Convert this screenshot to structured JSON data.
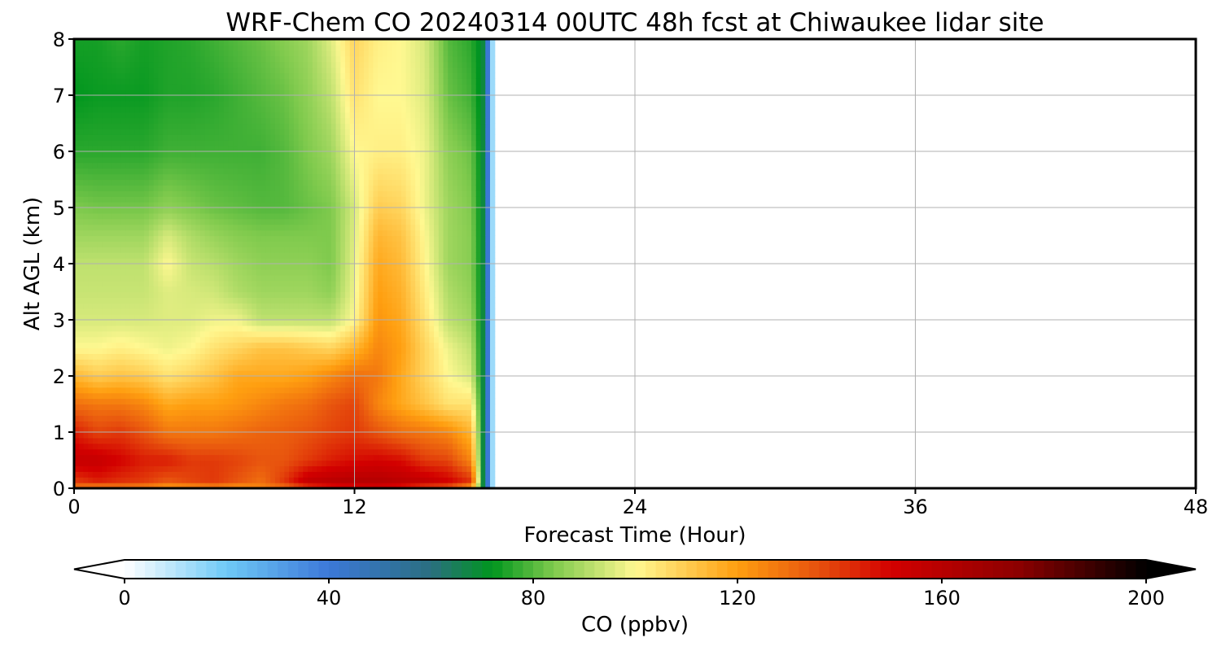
{
  "chart_data": {
    "type": "heatmap",
    "title": "WRF-Chem CO  20240314 00UTC 48h fcst at Chiwaukee lidar site",
    "xlabel": "Forecast Time (Hour)",
    "ylabel": "Alt AGL (km)",
    "xlim": [
      0,
      48
    ],
    "ylim": [
      0,
      8
    ],
    "xticks": [
      0,
      12,
      24,
      36,
      48
    ],
    "yticks": [
      0,
      1,
      2,
      3,
      4,
      5,
      6,
      7,
      8
    ],
    "grid": true,
    "colorbar": {
      "label": "CO  (ppbv)",
      "orientation": "horizontal",
      "placement": "bottom",
      "min": 0,
      "max": 200,
      "ticks": [
        0,
        40,
        80,
        120,
        160,
        200
      ],
      "extend": "both",
      "stops": [
        {
          "v": 0,
          "c": "#ffffff"
        },
        {
          "v": 20,
          "c": "#6ec9f7"
        },
        {
          "v": 40,
          "c": "#3c78d8"
        },
        {
          "v": 60,
          "c": "#2a6f80"
        },
        {
          "v": 72,
          "c": "#00961e"
        },
        {
          "v": 84,
          "c": "#7fca4d"
        },
        {
          "v": 100,
          "c": "#fff891"
        },
        {
          "v": 120,
          "c": "#ff9f10"
        },
        {
          "v": 135,
          "c": "#e8550e"
        },
        {
          "v": 150,
          "c": "#d30000"
        },
        {
          "v": 175,
          "c": "#8c0000"
        },
        {
          "v": 200,
          "c": "#000000"
        }
      ],
      "under_color": "#ffffff",
      "over_color": "#000000"
    },
    "x_hours": [
      0,
      1,
      2,
      3,
      4,
      5,
      6,
      7,
      8,
      9,
      10,
      11,
      12,
      13,
      14,
      15,
      16,
      17,
      17.5,
      18
    ],
    "altitudes_km": [
      0,
      0.15,
      0.5,
      1,
      1.5,
      2,
      2.5,
      3,
      3.5,
      4,
      4.5,
      5,
      6,
      7,
      8
    ],
    "co_ppbv": [
      [
        128,
        125,
        127,
        125,
        120,
        122,
        125,
        122,
        125,
        130,
        140,
        145,
        148,
        150,
        145,
        138,
        135,
        120,
        68,
        0
      ],
      [
        140,
        145,
        142,
        140,
        135,
        138,
        140,
        135,
        130,
        140,
        155,
        158,
        160,
        160,
        158,
        155,
        150,
        140,
        68,
        0
      ],
      [
        155,
        155,
        150,
        145,
        145,
        140,
        140,
        138,
        135,
        135,
        140,
        145,
        148,
        150,
        148,
        140,
        138,
        125,
        68,
        0
      ],
      [
        145,
        138,
        140,
        135,
        128,
        128,
        128,
        130,
        132,
        133,
        135,
        138,
        140,
        135,
        130,
        128,
        125,
        115,
        68,
        0
      ],
      [
        130,
        128,
        128,
        125,
        118,
        120,
        120,
        122,
        125,
        128,
        130,
        135,
        138,
        125,
        118,
        112,
        105,
        105,
        68,
        0
      ],
      [
        115,
        110,
        112,
        110,
        105,
        108,
        112,
        118,
        118,
        118,
        120,
        125,
        130,
        128,
        118,
        108,
        100,
        95,
        68,
        0
      ],
      [
        100,
        100,
        102,
        100,
        98,
        100,
        105,
        108,
        112,
        112,
        110,
        108,
        115,
        125,
        120,
        108,
        98,
        92,
        68,
        0
      ],
      [
        95,
        95,
        95,
        95,
        96,
        96,
        98,
        98,
        92,
        92,
        92,
        92,
        100,
        122,
        118,
        105,
        92,
        88,
        68,
        0
      ],
      [
        93,
        93,
        93,
        93,
        96,
        95,
        94,
        90,
        88,
        88,
        88,
        86,
        98,
        120,
        116,
        103,
        90,
        86,
        68,
        0
      ],
      [
        92,
        92,
        92,
        92,
        100,
        93,
        91,
        88,
        86,
        86,
        86,
        84,
        97,
        118,
        114,
        101,
        88,
        85,
        68,
        0
      ],
      [
        88,
        88,
        88,
        88,
        95,
        90,
        87,
        85,
        84,
        84,
        84,
        84,
        96,
        115,
        112,
        100,
        88,
        85,
        68,
        0
      ],
      [
        84,
        83,
        83,
        83,
        86,
        84,
        82,
        81,
        80,
        80,
        82,
        84,
        95,
        110,
        108,
        98,
        88,
        84,
        68,
        0
      ],
      [
        76,
        76,
        76,
        76,
        78,
        78,
        78,
        78,
        78,
        80,
        84,
        88,
        100,
        102,
        102,
        98,
        86,
        82,
        68,
        0
      ],
      [
        72,
        73,
        73,
        73,
        75,
        75,
        76,
        78,
        80,
        82,
        86,
        92,
        105,
        100,
        100,
        96,
        82,
        78,
        68,
        0
      ],
      [
        74,
        74,
        76,
        74,
        75,
        76,
        78,
        80,
        82,
        85,
        88,
        96,
        108,
        102,
        100,
        95,
        80,
        76,
        68,
        0
      ]
    ]
  }
}
